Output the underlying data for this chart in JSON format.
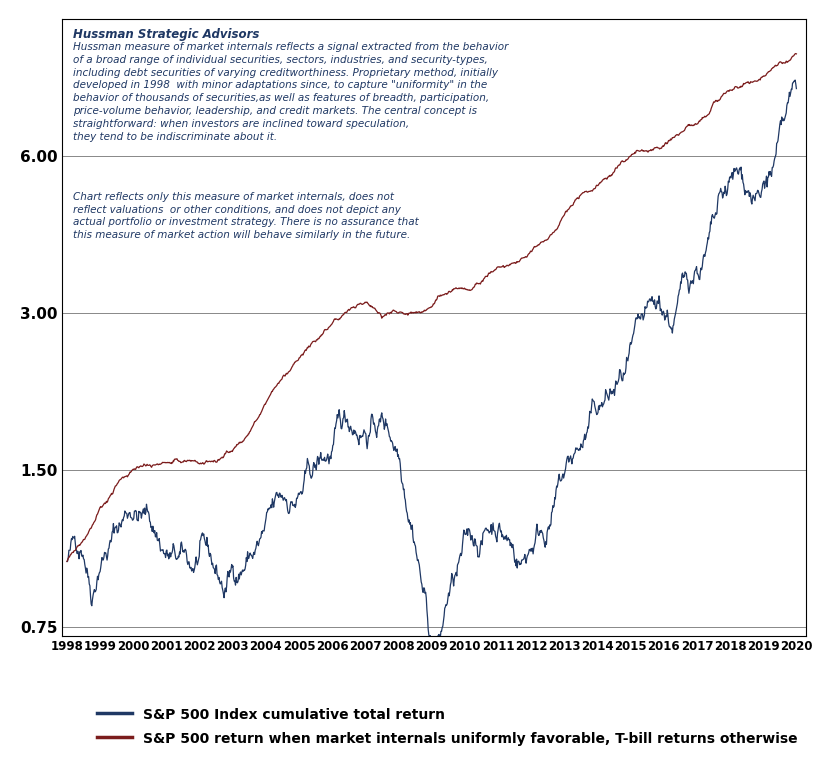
{
  "title_bold": "Hussman Strategic Advisors",
  "annotation1": "Hussman measure of market internals reflects a signal extracted from the behavior\nof a broad range of individual securities, sectors, industries, and security-types,\nincluding debt securities of varying creditworthiness. Proprietary method, initially\ndeveloped in 1998  with minor adaptations since, to capture \"uniformity\" in the\nbehavior of thousands of securities,as well as features of breadth, participation,\nprice-volume behavior, leadership, and credit markets. The central concept is\nstraightforward: when investors are inclined toward speculation,\nthey tend to be indiscriminate about it.",
  "annotation2": "Chart reflects only this measure of market internals, does not\nreflect valuations  or other conditions, and does not depict any\nactual portfolio or investment strategy. There is no assurance that\nthis measure of market action will behave similarly in the future.",
  "legend1": "S&P 500 Index cumulative total return",
  "legend2": "S&P 500 return when market internals uniformly favorable, T-bill returns otherwise",
  "sp500_color": "#1F3864",
  "internals_color": "#7B1C1C",
  "bg_color": "#FFFFFF",
  "yticks": [
    0.75,
    1.5,
    3.0,
    6.0
  ],
  "ytick_labels": [
    "0.75",
    "1.50",
    "3.00",
    "6.00"
  ],
  "xstart": 1998,
  "xend": 2020,
  "xticks": [
    1998,
    1999,
    2000,
    2001,
    2002,
    2003,
    2004,
    2005,
    2006,
    2007,
    2008,
    2009,
    2010,
    2011,
    2012,
    2013,
    2014,
    2015,
    2016,
    2017,
    2018,
    2019,
    2020
  ]
}
